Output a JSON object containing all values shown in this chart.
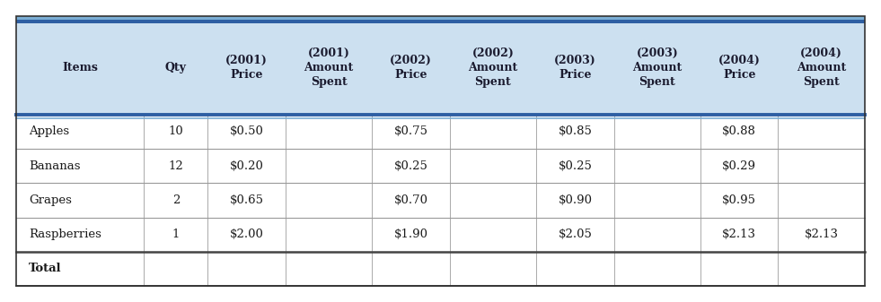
{
  "header_bg": "#cce0f0",
  "header_top_stripe_color": "#2e5fa3",
  "header_top_stripe2_color": "#7baed4",
  "row_separator": "#888888",
  "total_separator": "#333333",
  "bg_color": "#ffffff",
  "figure_bg": "#ffffff",
  "outer_border_color": "#333333",
  "columns": [
    {
      "label": "Items",
      "align": "center"
    },
    {
      "label": "Qty",
      "align": "center"
    },
    {
      "label": "(2001)\nPrice",
      "align": "center"
    },
    {
      "label": "(2001)\nAmount\nSpent",
      "align": "center"
    },
    {
      "label": "(2002)\nPrice",
      "align": "center"
    },
    {
      "label": "(2002)\nAmount\nSpent",
      "align": "center"
    },
    {
      "label": "(2003)\nPrice",
      "align": "center"
    },
    {
      "label": "(2003)\nAmount\nSpent",
      "align": "center"
    },
    {
      "label": "(2004)\nPrice",
      "align": "center"
    },
    {
      "label": "(2004)\nAmount\nSpent",
      "align": "center"
    }
  ],
  "col_widths_rel": [
    1.4,
    0.7,
    0.85,
    0.95,
    0.85,
    0.95,
    0.85,
    0.95,
    0.85,
    0.95
  ],
  "rows": [
    [
      "Apples",
      "10",
      "$0.50",
      "",
      "$0.75",
      "",
      "$0.85",
      "",
      "$0.88",
      ""
    ],
    [
      "Bananas",
      "12",
      "$0.20",
      "",
      "$0.25",
      "",
      "$0.25",
      "",
      "$0.29",
      ""
    ],
    [
      "Grapes",
      "2",
      "$0.65",
      "",
      "$0.70",
      "",
      "$0.90",
      "",
      "$0.95",
      ""
    ],
    [
      "Raspberries",
      "1",
      "$2.00",
      "",
      "$1.90",
      "",
      "$2.05",
      "",
      "$2.13",
      "$2.13"
    ],
    [
      "Total",
      "",
      "",
      "",
      "",
      "",
      "",
      "",
      "",
      ""
    ]
  ],
  "header_fontsize": 9.0,
  "cell_fontsize": 9.5,
  "font_family": "DejaVu Serif"
}
